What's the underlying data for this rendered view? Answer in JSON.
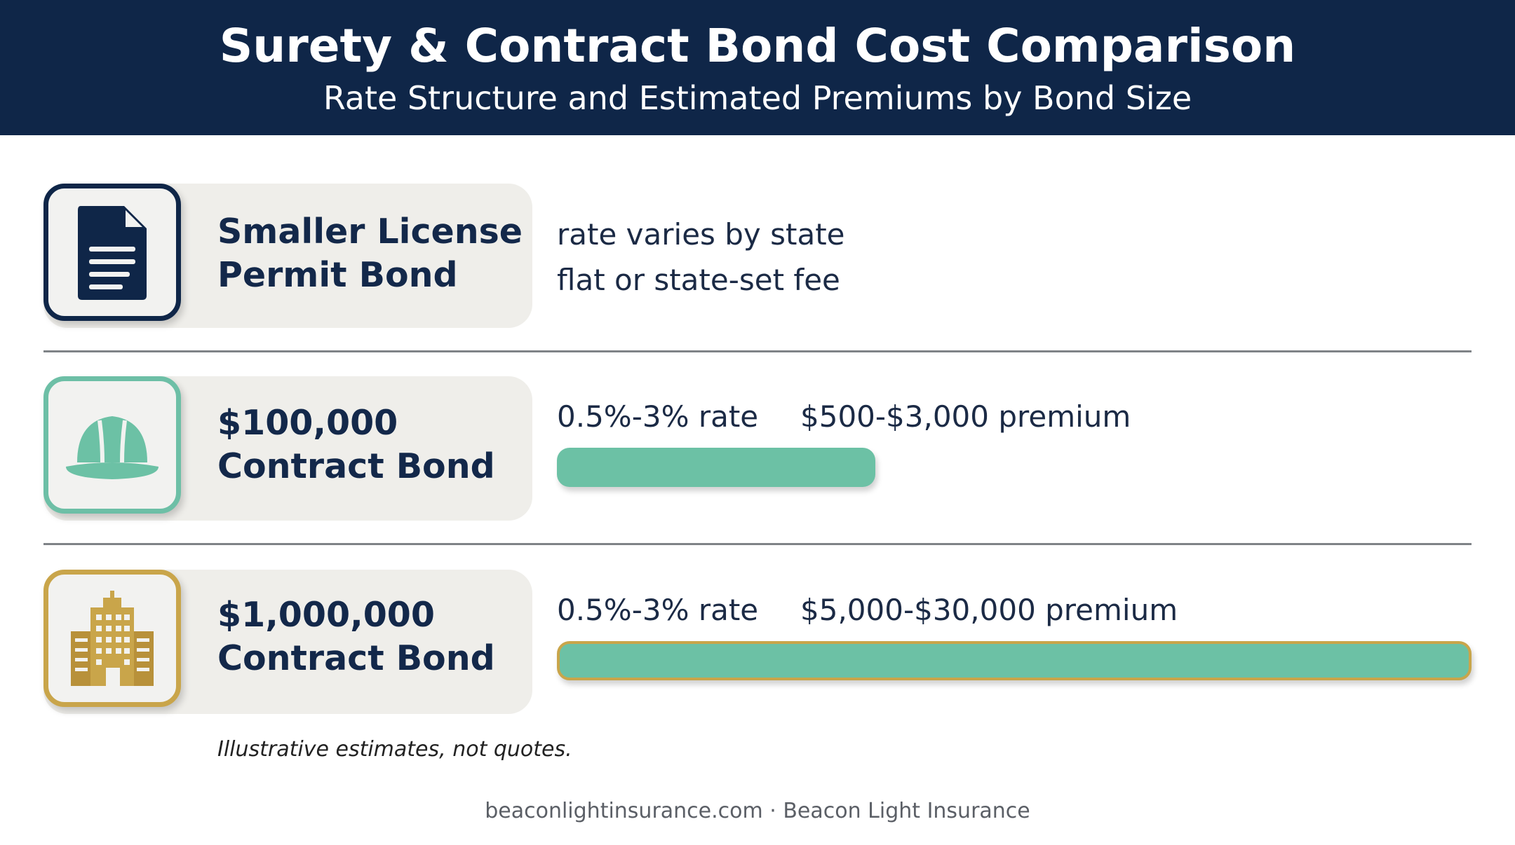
{
  "header": {
    "title": "Surety & Contract Bond Cost Comparison",
    "subtitle": "Rate Structure and Estimated Premiums by Bond Size"
  },
  "rows": [
    {
      "icon": "document-icon",
      "label_line1": "Smaller License",
      "label_line2": "Permit Bond",
      "note_line1": "rate varies by state",
      "note_line2": "flat or state-set fee"
    },
    {
      "icon": "hard-hat-icon",
      "label_line1": "$100,000",
      "label_line2": "Contract Bond",
      "rate": "0.5%-3% rate",
      "premium": "$500-$3,000 premium",
      "premium_max": 3000
    },
    {
      "icon": "office-building-icon",
      "label_line1": "$1,000,000",
      "label_line2": "Contract Bond",
      "rate": "0.5%-3% rate",
      "premium": "$5,000-$30,000 premium",
      "premium_max": 30000
    }
  ],
  "disclaimer": "Illustrative estimates, not quotes.",
  "footer": "beaconlightinsurance.com · Beacon Light Insurance",
  "colors": {
    "header_bg": "#0f2648",
    "navy": "#0f2648",
    "teal": "#6cc1a5",
    "gold": "#c9a54a",
    "card_bg": "#efeeea"
  }
}
